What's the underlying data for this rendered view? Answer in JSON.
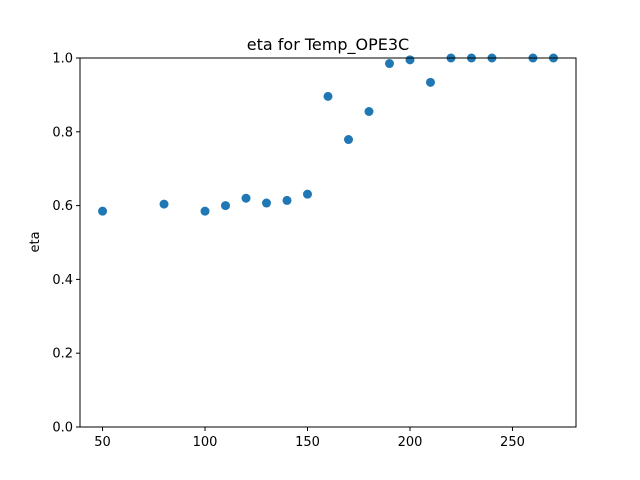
{
  "chart_data": {
    "type": "scatter",
    "title": "eta for Temp_OPE3C",
    "xlabel": "",
    "ylabel": "eta",
    "xlim": [
      39,
      281
    ],
    "ylim": [
      0.0,
      1.0
    ],
    "xticks": [
      50,
      100,
      150,
      200,
      250
    ],
    "yticks": [
      0.0,
      0.2,
      0.4,
      0.6,
      0.8,
      1.0
    ],
    "xtick_labels": [
      "50",
      "100",
      "150",
      "200",
      "250"
    ],
    "ytick_labels": [
      "0.0",
      "0.2",
      "0.4",
      "0.6",
      "0.8",
      "1.0"
    ],
    "grid": false,
    "marker_color": "#1f77b4",
    "series": [
      {
        "x": [
          50,
          80,
          100,
          110,
          120,
          130,
          140,
          150,
          160,
          170,
          180,
          190,
          200,
          210,
          220,
          230,
          240,
          260,
          270
        ],
        "y": [
          0.585,
          0.604,
          0.585,
          0.6,
          0.62,
          0.607,
          0.614,
          0.631,
          0.896,
          0.779,
          0.855,
          0.985,
          0.995,
          0.934,
          1.0,
          1.0,
          1.0,
          1.0,
          1.0
        ]
      }
    ]
  }
}
